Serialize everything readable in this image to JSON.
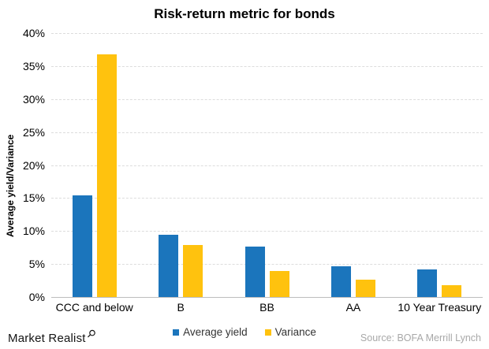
{
  "chart_data": {
    "type": "bar",
    "title": "Risk-return metric for bonds",
    "ylabel": "Average yield/Variance",
    "categories": [
      "CCC and below",
      "B",
      "BB",
      "AA",
      "10 Year Treasury"
    ],
    "series": [
      {
        "name": "Average yield",
        "color": "#1B75BC",
        "values": [
          15.4,
          9.4,
          7.6,
          4.7,
          4.2
        ]
      },
      {
        "name": "Variance",
        "color": "#FFC20E",
        "values": [
          36.8,
          7.9,
          3.9,
          2.6,
          1.8
        ]
      }
    ],
    "ylim": [
      0,
      40
    ],
    "ytick_step": 5,
    "ytick_suffix": "%",
    "grid": "horizontal-dashed",
    "legend_position": "bottom-center"
  },
  "footer": {
    "brand": "Market Realist",
    "brand_icon": "magnifier-icon",
    "source": "Source: BOFA Merrill Lynch"
  },
  "colors": {
    "average_yield": "#1B75BC",
    "variance": "#FFC20E",
    "gridline": "#DCDCDC",
    "axis_line": "#BDBDBD",
    "source_text": "#A8A8A8",
    "title_text": "#000000"
  }
}
